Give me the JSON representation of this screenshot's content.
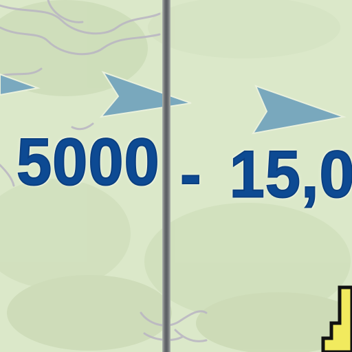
{
  "map": {
    "background_color": "#dbe8c9",
    "terrain_color": "#c9d9b4",
    "contour_color": "#b7b3c1",
    "text_color": "#0d4a93",
    "arrow_color": "#78a9bd",
    "meridian_color": "#5f6266",
    "highlight_fill": "#f1ea5e",
    "highlight_stroke": "#111111"
  },
  "labels": {
    "left": "5000",
    "separator": "-",
    "right": "15,0"
  },
  "symbols": {
    "arrows": [
      "direction-arrow",
      "direction-arrow",
      "direction-arrow"
    ],
    "line": "meridian-line",
    "area": "yellow-boundary-area"
  }
}
